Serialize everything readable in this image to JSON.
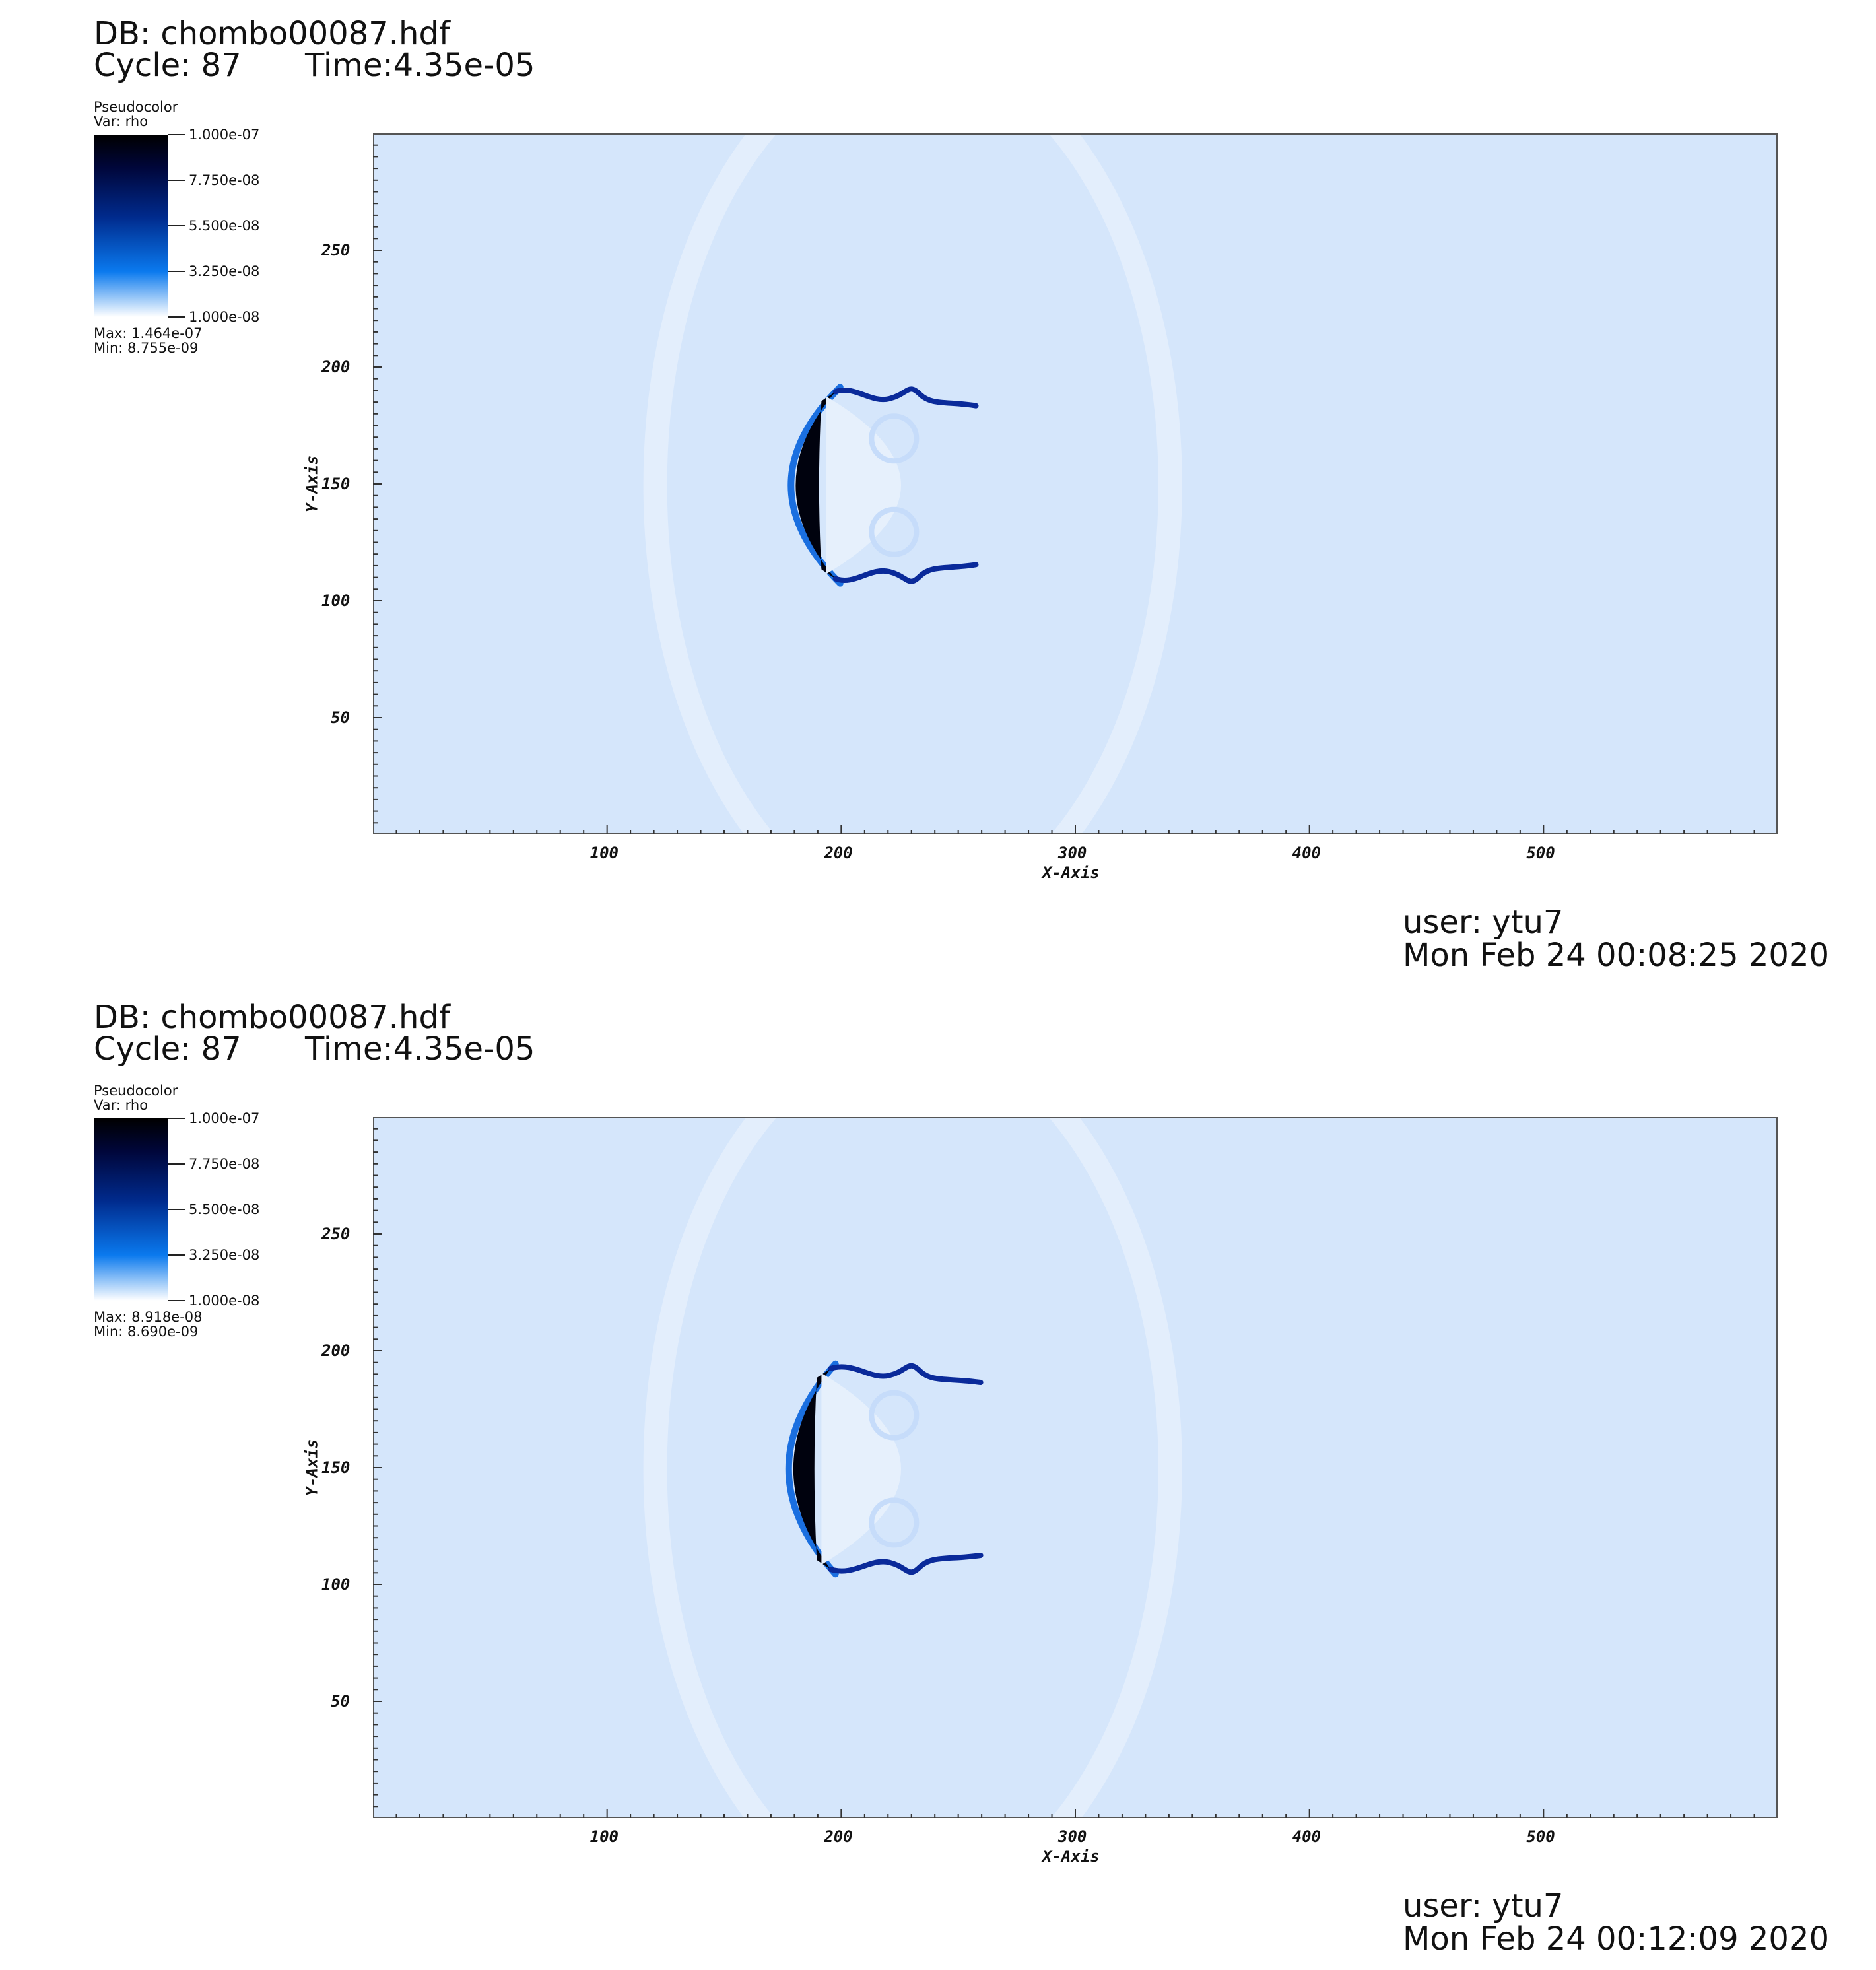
{
  "panels": [
    {
      "db": "DB: chombo00087.hdf",
      "cycle": "Cycle: 87",
      "time": "Time:4.35e-05",
      "legend": {
        "title": "Pseudocolor",
        "var": "Var: rho",
        "labels": [
          "1.000e-07",
          "7.750e-08",
          "5.500e-08",
          "3.250e-08",
          "1.000e-08"
        ],
        "max": "Max:  1.464e-07",
        "min": "Min:  8.755e-09"
      },
      "user": "user: ytu7",
      "date": "Mon Feb 24 00:08:25 2020"
    },
    {
      "db": "DB: chombo00087.hdf",
      "cycle": "Cycle: 87",
      "time": "Time:4.35e-05",
      "legend": {
        "title": "Pseudocolor",
        "var": "Var: rho",
        "labels": [
          "1.000e-07",
          "7.750e-08",
          "5.500e-08",
          "3.250e-08",
          "1.000e-08"
        ],
        "max": "Max:  8.918e-08",
        "min": "Min:  8.690e-09"
      },
      "user": "user: ytu7",
      "date": "Mon Feb 24 00:12:09 2020"
    }
  ],
  "chart_data": [
    {
      "type": "heatmap",
      "xlabel": "X-Axis",
      "ylabel": "Y-Axis",
      "xlim": [
        0,
        600
      ],
      "ylim": [
        0,
        300
      ],
      "xticks": [
        100,
        200,
        300,
        400,
        500
      ],
      "yticks": [
        50,
        100,
        150,
        200,
        250
      ],
      "colorbar": {
        "var": "rho",
        "min": 1e-08,
        "max": 1e-07,
        "colors": [
          "#ffffff",
          "#0a79ee",
          "#002a8c",
          "#00063a",
          "#000000"
        ]
      },
      "background_color": "#d5e6fb",
      "front": {
        "x_left": 173,
        "x_right": 193,
        "y_min": 110,
        "y_max": 190,
        "x_tips": 257
      }
    },
    {
      "type": "heatmap",
      "xlabel": "X-Axis",
      "ylabel": "Y-Axis",
      "xlim": [
        0,
        600
      ],
      "ylim": [
        0,
        300
      ],
      "xticks": [
        100,
        200,
        300,
        400,
        500
      ],
      "yticks": [
        50,
        100,
        150,
        200,
        250
      ],
      "colorbar": {
        "var": "rho",
        "min": 1e-08,
        "max": 1e-07,
        "colors": [
          "#ffffff",
          "#0a79ee",
          "#002a8c",
          "#00063a",
          "#000000"
        ]
      },
      "background_color": "#d5e6fb",
      "front": {
        "x_left": 173,
        "x_right": 191,
        "y_min": 107,
        "y_max": 193,
        "x_tips": 259
      }
    }
  ]
}
